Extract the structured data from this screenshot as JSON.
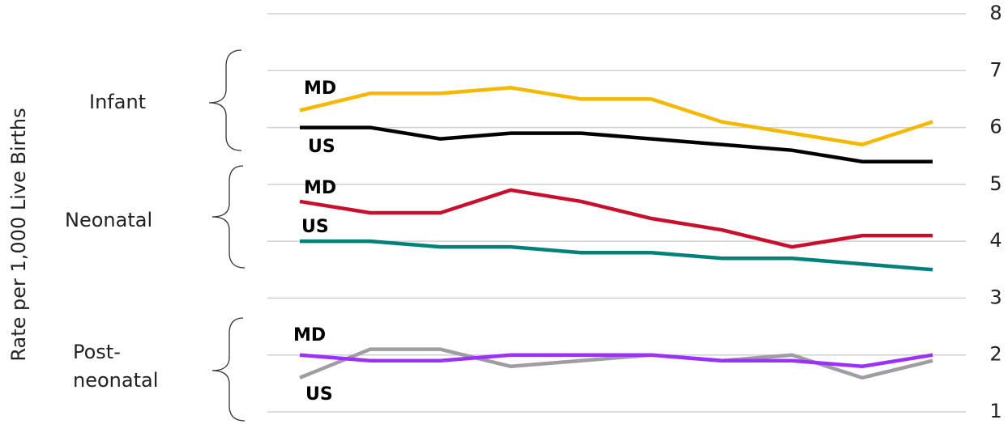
{
  "chart_data": {
    "type": "line",
    "y_label": "Rate per 1,000 Live Births",
    "categories": [
      null,
      null,
      null,
      null,
      null,
      null,
      null,
      null,
      null,
      null
    ],
    "ylim": [
      1,
      8
    ],
    "yticks": [
      1,
      2,
      3,
      4,
      5,
      6,
      7,
      8
    ],
    "grid": true,
    "y_axis_side": "right",
    "groups": [
      {
        "lines": [
          "Infant"
        ]
      },
      {
        "lines": [
          "Neonatal"
        ]
      },
      {
        "lines": [
          "Post-",
          "neonatal"
        ]
      }
    ],
    "series": [
      {
        "name": "MD",
        "color": "#f5b800",
        "values": [
          6.3,
          6.6,
          6.6,
          6.7,
          6.5,
          6.5,
          6.1,
          5.9,
          5.7,
          6.1
        ]
      },
      {
        "name": "US",
        "color": "#000000",
        "values": [
          6.0,
          6.0,
          5.8,
          5.9,
          5.9,
          5.8,
          5.7,
          5.6,
          5.4,
          5.4
        ]
      },
      {
        "name": "MD",
        "color": "#c8102e",
        "values": [
          4.7,
          4.5,
          4.5,
          4.9,
          4.7,
          4.4,
          4.2,
          3.9,
          4.1,
          4.1
        ]
      },
      {
        "name": "US",
        "color": "#00807a",
        "values": [
          4.0,
          4.0,
          3.9,
          3.9,
          3.8,
          3.8,
          3.7,
          3.7,
          3.6,
          3.5
        ]
      },
      {
        "name": "MD",
        "color": "#a09ca4",
        "values": [
          1.6,
          2.1,
          2.1,
          1.8,
          1.9,
          2.0,
          1.9,
          2.0,
          1.6,
          1.9
        ]
      },
      {
        "name": "US",
        "color": "#9b30ff",
        "values": [
          2.0,
          1.9,
          1.9,
          2.0,
          2.0,
          2.0,
          1.9,
          1.9,
          1.8,
          2.0
        ]
      }
    ]
  }
}
